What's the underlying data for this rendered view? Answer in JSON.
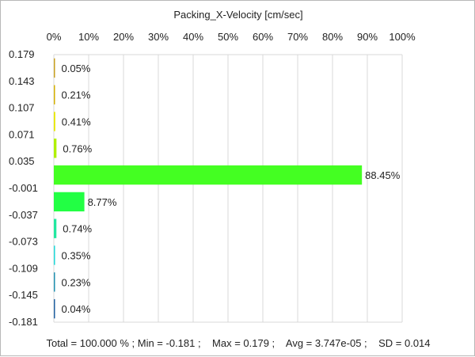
{
  "chart_data": {
    "type": "bar",
    "orientation": "horizontal",
    "title": "Packing_X-Velocity [cm/sec]",
    "xlabel": "",
    "ylabel": "",
    "x_ticks": [
      "0%",
      "10%",
      "20%",
      "30%",
      "40%",
      "50%",
      "60%",
      "70%",
      "80%",
      "90%",
      "100%"
    ],
    "xlim": [
      0,
      100
    ],
    "y_ticks": [
      "0.179",
      "0.143",
      "0.107",
      "0.071",
      "0.035",
      "-0.001",
      "-0.037",
      "-0.073",
      "-0.109",
      "-0.145",
      "-0.181"
    ],
    "grid": true,
    "bins": [
      {
        "value": 0.05,
        "label": "0.05%",
        "color": "#c8a020"
      },
      {
        "value": 0.21,
        "label": "0.21%",
        "color": "#d4b000"
      },
      {
        "value": 0.41,
        "label": "0.41%",
        "color": "#e8e800"
      },
      {
        "value": 0.76,
        "label": "0.76%",
        "color": "#b0f000"
      },
      {
        "value": 88.45,
        "label": "88.45%",
        "color": "#44ff22"
      },
      {
        "value": 8.77,
        "label": "8.77%",
        "color": "#22ff44"
      },
      {
        "value": 0.74,
        "label": "0.74%",
        "color": "#22e8a0"
      },
      {
        "value": 0.35,
        "label": "0.35%",
        "color": "#22d8d8"
      },
      {
        "value": 0.23,
        "label": "0.23%",
        "color": "#2090b0"
      },
      {
        "value": 0.04,
        "label": "0.04%",
        "color": "#2060a0"
      }
    ]
  },
  "footer": {
    "stats": "Total = 100.000 % ; Min = -0.181 ;    Max = 0.179 ;    Avg = 3.747e-05 ;    SD = 0.014"
  }
}
